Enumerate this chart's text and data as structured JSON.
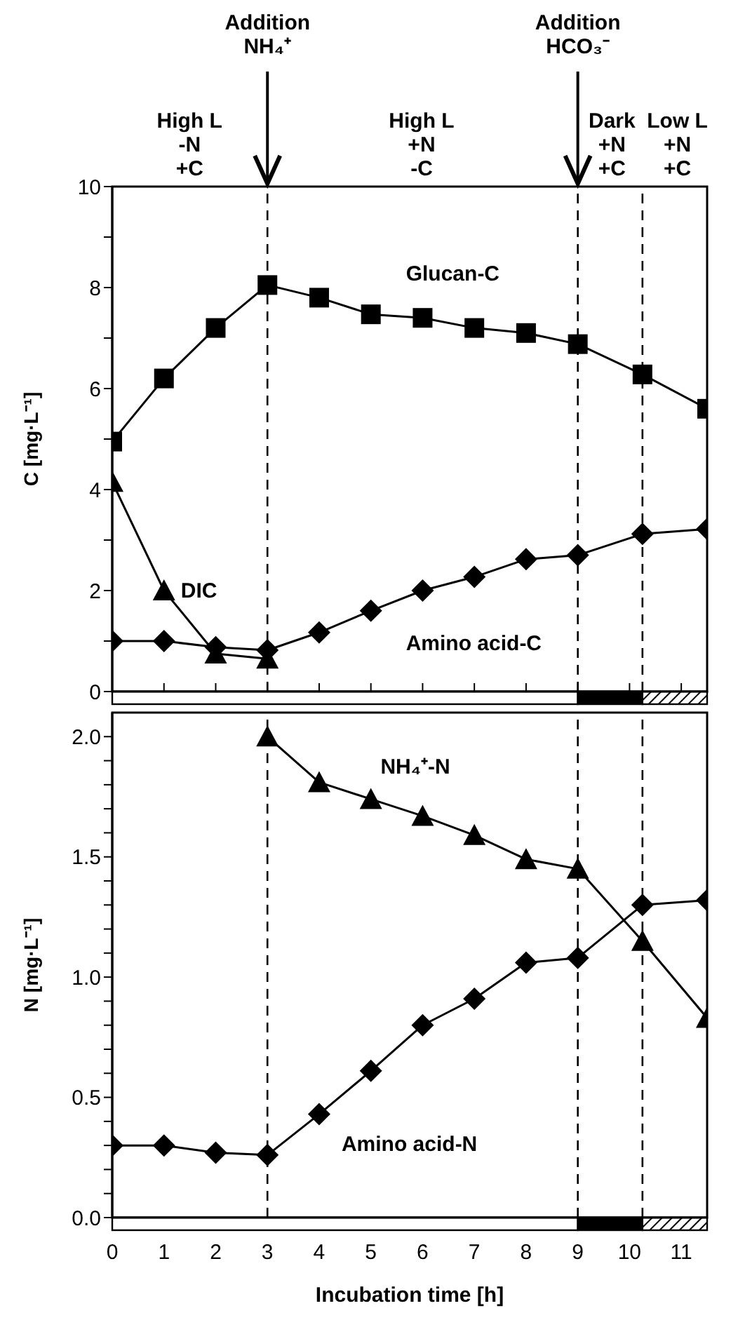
{
  "chart_data": [
    {
      "type": "line",
      "ylabel": "C [mg·L⁻¹]",
      "xlim": [
        0,
        11.5
      ],
      "ylim": [
        0,
        10
      ],
      "xticks": [
        {
          "value": 0,
          "label": null
        },
        {
          "value": 1,
          "label": null
        },
        {
          "value": 2,
          "label": null
        },
        {
          "value": 3,
          "label": null
        },
        {
          "value": 4,
          "label": null
        },
        {
          "value": 5,
          "label": null
        },
        {
          "value": 6,
          "label": null
        },
        {
          "value": 7,
          "label": null
        },
        {
          "value": 8,
          "label": null
        },
        {
          "value": 9,
          "label": null
        },
        {
          "value": 10,
          "label": null
        },
        {
          "value": 11,
          "label": null
        }
      ],
      "yticks": [
        0,
        {
          "value": 1,
          "label": null
        },
        2,
        {
          "value": 3,
          "label": null
        },
        4,
        {
          "value": 5,
          "label": null
        },
        6,
        {
          "value": 7,
          "label": null
        },
        8,
        {
          "value": 9,
          "label": null
        },
        10
      ],
      "tick_labels": "y",
      "series": [
        {
          "name": "Glucan-C",
          "color": "#000000",
          "marker": "square",
          "x": [
            0,
            1,
            2,
            3,
            4,
            5,
            6,
            7,
            8,
            9,
            10.25,
            11.5
          ],
          "values": [
            4.95,
            6.2,
            7.2,
            8.05,
            7.8,
            7.47,
            7.4,
            7.2,
            7.1,
            6.88,
            6.28,
            5.6
          ]
        },
        {
          "name": "DIC",
          "color": "#000000",
          "marker": "triangle",
          "x": [
            0,
            1,
            2,
            3
          ],
          "values": [
            4.15,
            2.0,
            0.75,
            0.65
          ]
        },
        {
          "name": "Amino acid-C",
          "color": "#000000",
          "marker": "diamond",
          "x": [
            0,
            1,
            2,
            3,
            4,
            5,
            6,
            7,
            8,
            9,
            10.25,
            11.5
          ],
          "values": [
            1.0,
            1.0,
            0.88,
            0.82,
            1.17,
            1.6,
            2.0,
            2.27,
            2.62,
            2.7,
            3.12,
            3.22
          ]
        }
      ],
      "ref_lines": [
        {
          "axis": "x",
          "value": 3,
          "label": "Addition\nNH₄⁺",
          "line_style": "dashed"
        },
        {
          "axis": "x",
          "value": 9,
          "label": "Addition\nHCO₃⁻",
          "line_style": "dashed"
        },
        {
          "axis": "x",
          "value": 10.25,
          "line_style": "dashed"
        }
      ],
      "annotations": [
        "High L\n-N\n+C",
        "High L\n+N\n-C",
        "Dark\n+N\n+C",
        "Low L\n+N\n+C"
      ]
    },
    {
      "type": "line",
      "xlabel": "Incubation time [h]",
      "ylabel": "N [mg·L⁻¹]",
      "xlim": [
        0,
        11.5
      ],
      "ylim": [
        0,
        2.1
      ],
      "xticks": [
        0,
        1,
        2,
        3,
        4,
        5,
        6,
        7,
        8,
        9,
        10,
        11
      ],
      "yticks": [
        {
          "value": 0,
          "label": "0.0"
        },
        {
          "value": 0.1,
          "label": null
        },
        {
          "value": 0.2,
          "label": null
        },
        {
          "value": 0.3,
          "label": null
        },
        {
          "value": 0.4,
          "label": null
        },
        {
          "value": 0.5,
          "label": "0.5"
        },
        {
          "value": 0.6,
          "label": null
        },
        {
          "value": 0.7,
          "label": null
        },
        {
          "value": 0.8,
          "label": null
        },
        {
          "value": 0.9,
          "label": null
        },
        {
          "value": 1,
          "label": "1.0"
        },
        {
          "value": 1.1,
          "label": null
        },
        {
          "value": 1.2,
          "label": null
        },
        {
          "value": 1.3,
          "label": null
        },
        {
          "value": 1.4,
          "label": null
        },
        {
          "value": 1.5,
          "label": "1.5"
        },
        {
          "value": 1.6,
          "label": null
        },
        {
          "value": 1.7,
          "label": null
        },
        {
          "value": 1.8,
          "label": null
        },
        {
          "value": 1.9,
          "label": null
        },
        {
          "value": 2,
          "label": "2.0"
        }
      ],
      "series": [
        {
          "name": "NH₄⁺-N",
          "color": "#000000",
          "marker": "triangle",
          "x": [
            3,
            4,
            5,
            6,
            7,
            8,
            9,
            10.25,
            11.5
          ],
          "values": [
            2.0,
            1.81,
            1.74,
            1.67,
            1.59,
            1.49,
            1.45,
            1.15,
            0.83
          ]
        },
        {
          "name": "Amino acid-N",
          "color": "#000000",
          "marker": "diamond",
          "x": [
            0,
            1,
            2,
            3,
            4,
            5,
            6,
            7,
            8,
            9,
            10.25,
            11.5
          ],
          "values": [
            0.3,
            0.3,
            0.27,
            0.26,
            0.43,
            0.61,
            0.8,
            0.91,
            1.06,
            1.08,
            1.3,
            1.32
          ]
        }
      ],
      "ref_lines": [
        {
          "axis": "x",
          "value": 3,
          "line_style": "dashed"
        },
        {
          "axis": "x",
          "value": 9,
          "line_style": "dashed"
        },
        {
          "axis": "x",
          "value": 10.25,
          "line_style": "dashed"
        }
      ]
    }
  ]
}
